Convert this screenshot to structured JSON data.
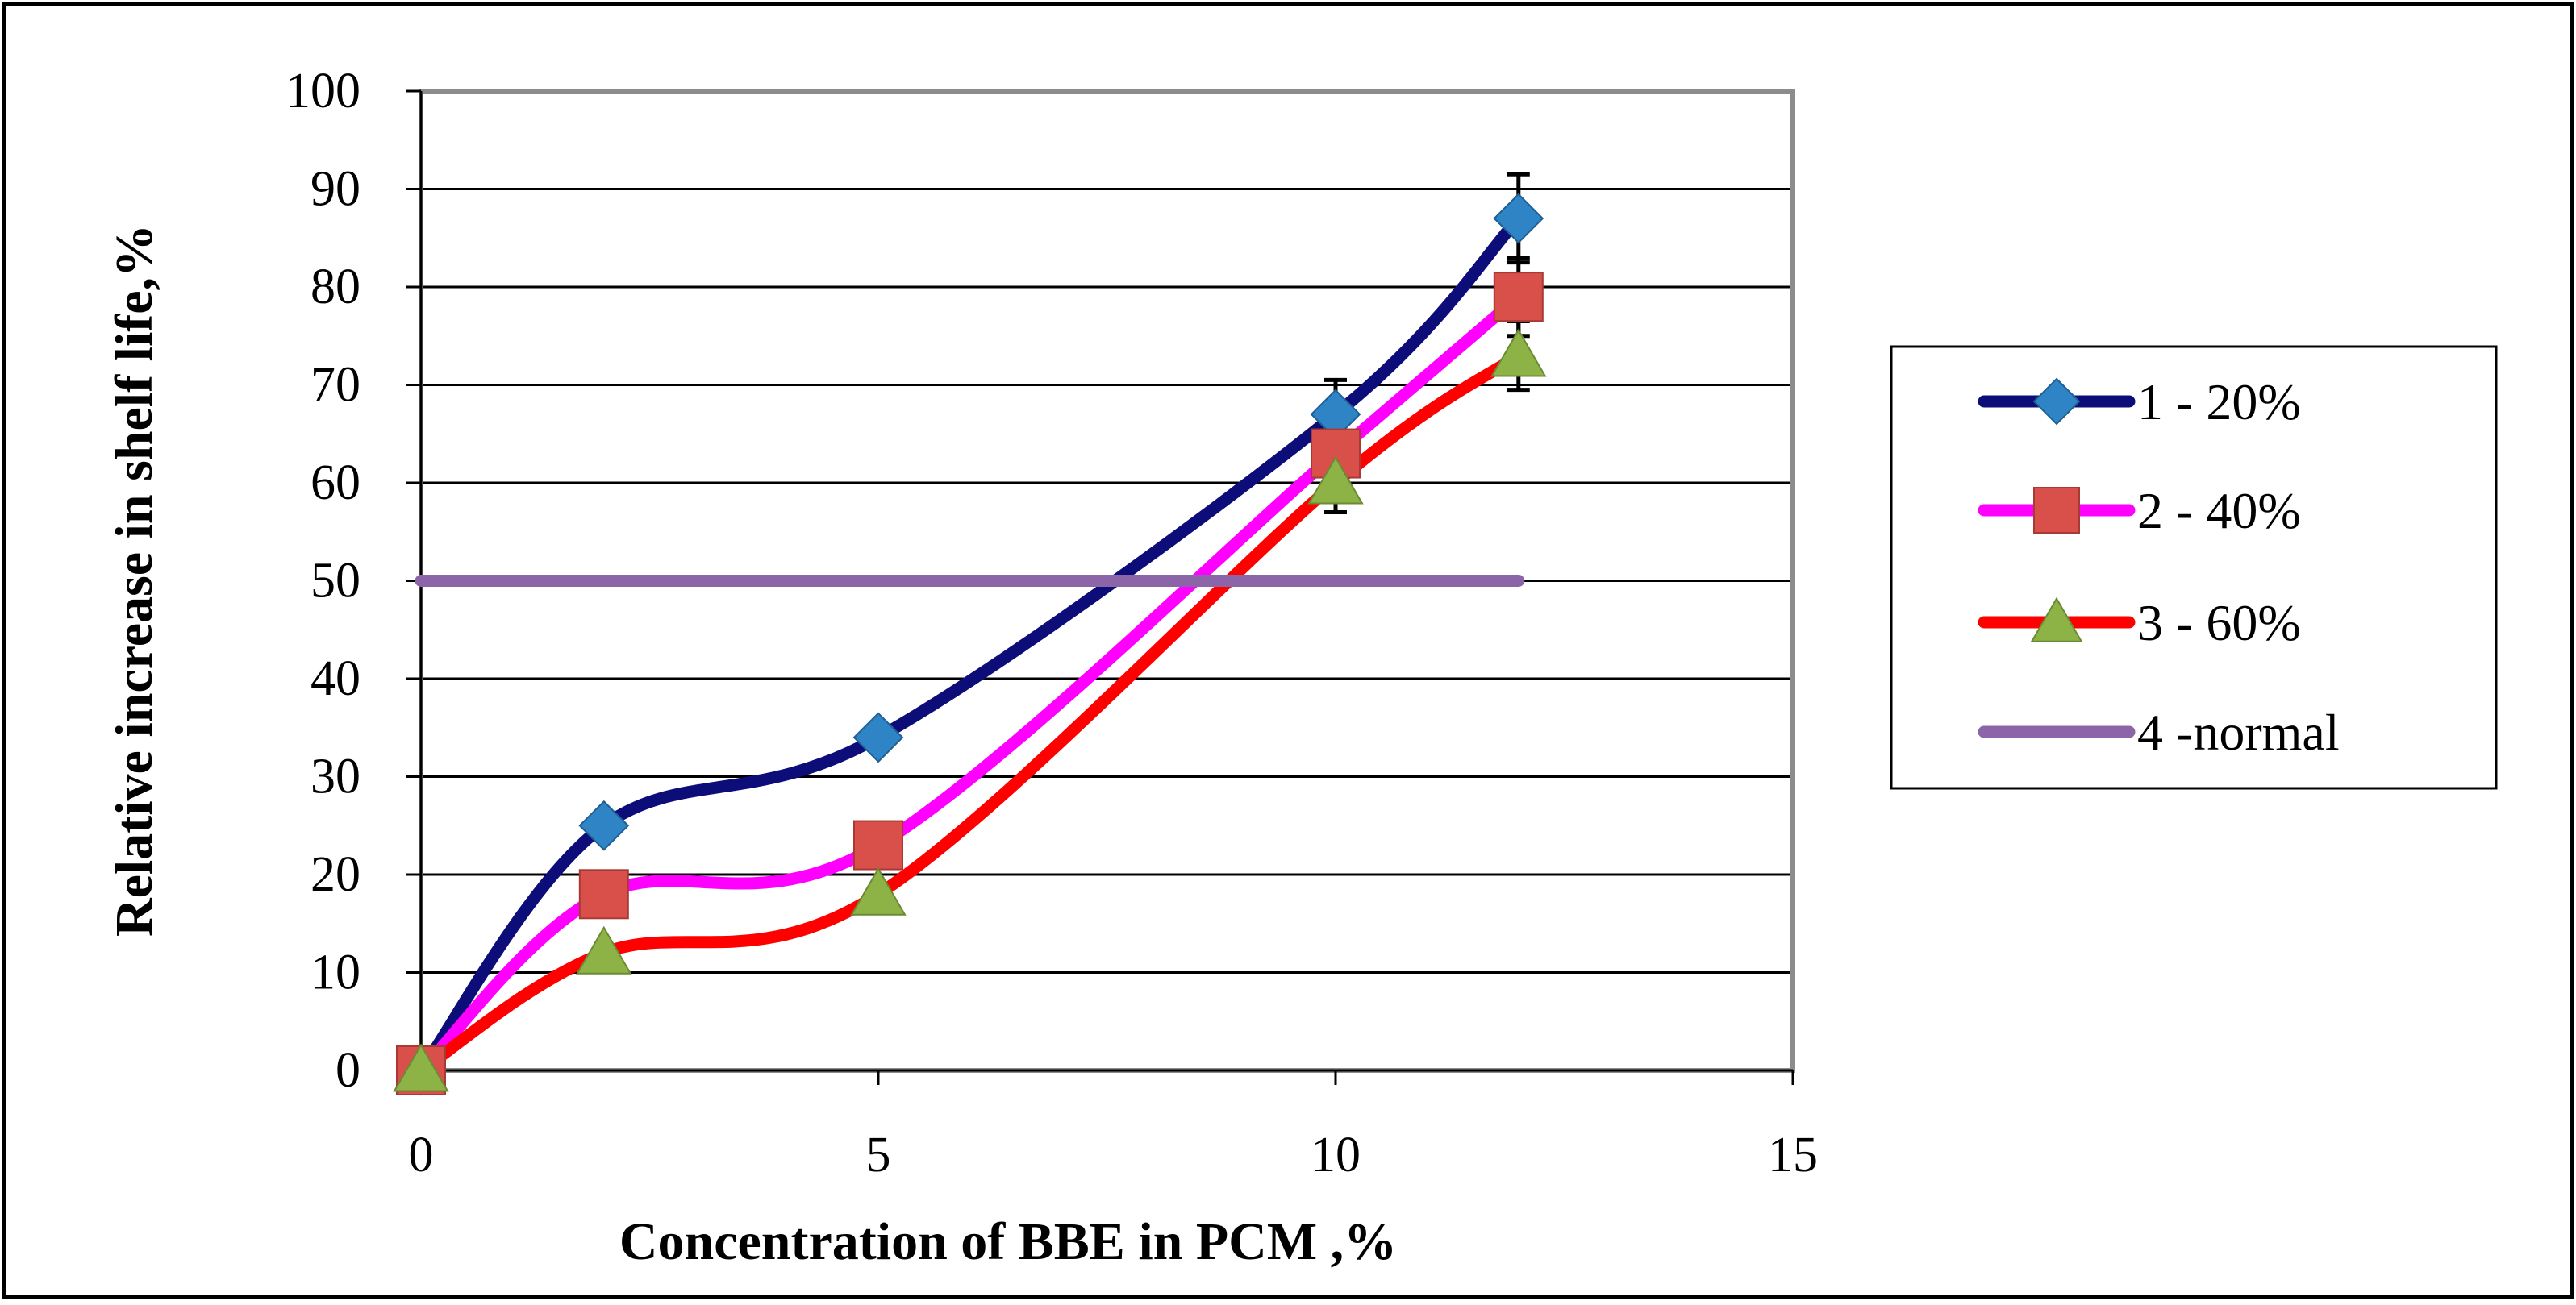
{
  "chart_data": {
    "type": "line",
    "title": "",
    "xlabel": "Concentration of BBE in PCM ,%",
    "ylabel": "Relative increase in shelf life,%",
    "xlim": [
      0,
      15
    ],
    "ylim": [
      0,
      100
    ],
    "x_ticks": [
      "0",
      "5",
      "10",
      "15"
    ],
    "y_ticks": [
      "0",
      "10",
      "20",
      "30",
      "40",
      "50",
      "60",
      "70",
      "80",
      "90",
      "100"
    ],
    "grid": "horizontal",
    "legend_position": "right",
    "series": [
      {
        "name": "1 - 20%",
        "color": "#0d0d7a",
        "marker": "diamond",
        "marker_color": "#2f84c6",
        "x": [
          0,
          2,
          5,
          10,
          12
        ],
        "y": [
          0,
          25,
          34,
          67,
          87
        ],
        "errors": [
          0,
          0,
          0,
          3.5,
          4.5
        ]
      },
      {
        "name": "2 - 40%",
        "color": "#ff00ff",
        "marker": "square",
        "marker_color": "#d9504a",
        "x": [
          0,
          2,
          5,
          10,
          12
        ],
        "y": [
          0,
          18,
          23,
          63,
          79
        ],
        "errors": [
          0,
          0,
          0,
          3.5,
          4
        ]
      },
      {
        "name": "3 - 60%",
        "color": "#ff0000",
        "marker": "triangle",
        "marker_color": "#8db347",
        "x": [
          0,
          2,
          5,
          10,
          12
        ],
        "y": [
          0,
          12,
          18,
          60,
          73
        ],
        "errors": [
          0,
          0,
          0,
          3,
          3.5
        ]
      },
      {
        "name": "4 -normal",
        "color": "#8c64a8",
        "marker": "none",
        "marker_color": "#8c64a8",
        "x": [
          0,
          12
        ],
        "y": [
          50,
          50
        ],
        "errors": [
          0,
          0
        ]
      }
    ]
  }
}
